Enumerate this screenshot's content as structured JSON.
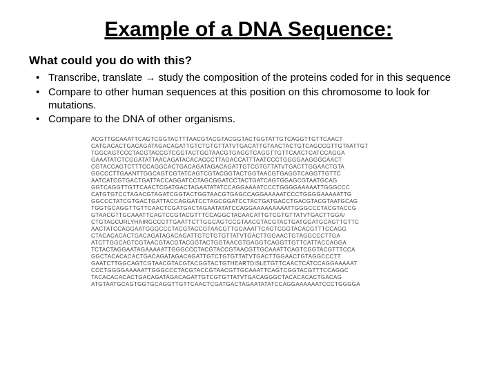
{
  "title": "Example of a DNA Sequence:",
  "subhead": "What could you do with this?",
  "arrow": "→",
  "bullets": {
    "b1a": "Transcribe, translate ",
    "b1b": " study the composition of the proteins coded for in this sequence",
    "b2": "Compare to other human sequences at this position on this chromosome to look for mutations.",
    "b3": "Compare to the DNA of other organisms."
  },
  "sequence": {
    "lines": [
      "ACGTTGCAAATTCAGTCGGTACTTTAACGTACGTACGGTACTGGTATTGTCAGGTTGTTCAACT",
      "CATGACACTGACAGATAGACAGATTGTCTGTGTTATVTGACATTGTAACTACTGTCAGCCGTTGTAATTGT",
      "TGGCAGTCCCTACGTACCGTCGGTACTGGTAACGTGAGGTCAGGTTGTTCAACTCATCCAGGA",
      "GAAATATCTCGGATATTAACAGATACACACCCTTAGACCATTTAATCCCTGGGGAAGGGCAACT",
      "CGTACCAGTCTTTCCAGGCACTGACAGATAGACAGATTGTCGTGTTATVTGACTTGGAACTGTA",
      "GGCCCTTGAANTTGGCAGTCGTATCAGTCGTACGGTACTGGTAACGTGAGGTCAGGTTGTTC",
      "AATCATCGTGACTGATTACCAGGATCCTAGCGGATCCTACTGATCAGTGGAGCGTAATGCAG",
      "GGTCAGGTTGTTCAACTCGATGACTAGAATATATCCAGGAAAATCCCTGGGGAAAAATTGGGCCC",
      "CATGTGTCCTAGACGTAGATCGGTACTGGTAACGTGAGCCAGGAAAAATCCCTGGGGAAAAATTG",
      "GGCCCTATCGTGACTGATTACCAGGATCCTAGCGGATCCTACTGATGACCTGACGTACGTAATGCAG",
      "TGGTGCAGGTTGTTCAACTCGATGACTAGAATATATCCAGGAAAAAAAAATTGGGCCCTACGTACCG",
      "GTAACGTTGCAAATTCAGTCCGTACGTTTCCAGGCTACAACATTGTCGTGTTATVTGACTTGGA/",
      "CTGTAGCURLYHAIRGCCCTTGAATTCTTGGCAGTCCGTAACGTACGTACTGATGGATGCAGTTGTTC",
      "AACTATCCAGGAATGGGCCCTACGTACCGTAACGTTGCAAATTCAGTCGGTACACGTTTCCAGG",
      "CTACACACACTGACAGATAGACAGATTGTCTGTGTTATVTGACTTGGAACTGTAGGCCCTTGA",
      "ATCTTGGCAGTCGTAACGTACGTACGGTACTGGTAACGTGAGGTCAGGTTGTTCATTACCAGGA",
      "TCTACTAGGAATAGAAAAATTGGGCCCTACGTACCGTAACGTTGCAAATTCAGTCGGTACGTTTCCA",
      "GGCTACACACACTGACAGATAGACAGATTGTCTGTGTTATVTGACTTGGAACTGTAGGCCCTT",
      "GAATCTTGGCAGTCGTAACGTACGTACGGTACTGTHEARTDISLETGTTCAACTCATCCAGGAAAAAT",
      "CCCTGGGGAAAAATTGGGCCCTACGTACCGTAACGTTGCAAATTCAGTCGGTACGTTTCCAGGC",
      "TACACACACACTGACAGATAGACAGATTGTCGTGTTATVTGACAGGGCTACACACACTGACAG",
      "ATGTAATGCAGTGGTGCAGGTTGTTCAACTCGATGACTAGAATATATCCAGGAAAAAATCCCTGGGGA"
    ]
  },
  "colors": {
    "background": "#ffffff",
    "text": "#000000",
    "sequence_text": "#444444"
  },
  "typography": {
    "title_fontsize": 30,
    "subhead_fontsize": 17,
    "body_fontsize": 15,
    "sequence_fontsize": 8,
    "title_weight": "bold",
    "subhead_weight": "bold"
  }
}
